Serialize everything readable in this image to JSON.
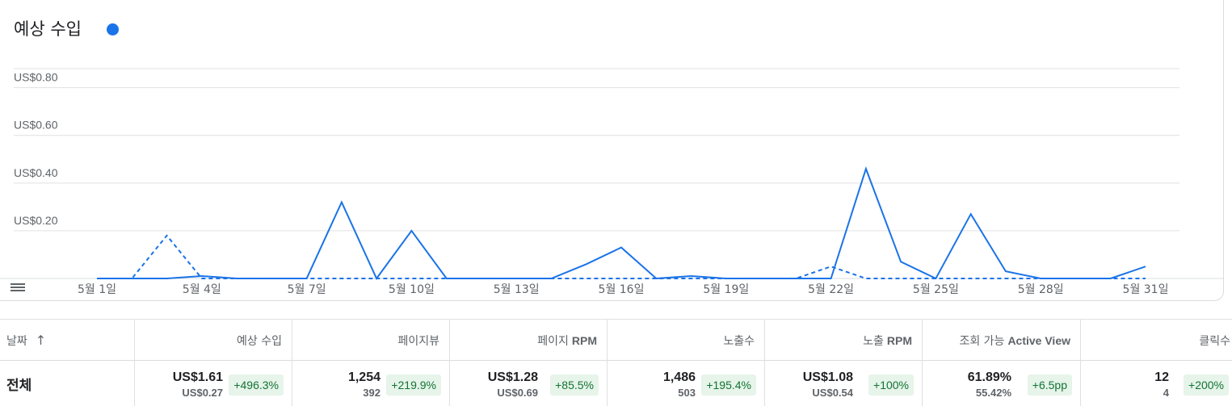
{
  "chart": {
    "title": "예상 수입",
    "series_color": "#1a73e8",
    "legend_icon": "menu-lines-icon"
  },
  "chart_data": {
    "type": "line",
    "x": [
      "5월 1일",
      "5월 2일",
      "5월 3일",
      "5월 4일",
      "5월 5일",
      "5월 6일",
      "5월 7일",
      "5월 8일",
      "5월 9일",
      "5월 10일",
      "5월 11일",
      "5월 12일",
      "5월 13일",
      "5월 14일",
      "5월 15일",
      "5월 16일",
      "5월 17일",
      "5월 18일",
      "5월 19일",
      "5월 20일",
      "5월 21일",
      "5월 22일",
      "5월 23일",
      "5월 24일",
      "5월 25일",
      "5월 26일",
      "5월 27일",
      "5월 28일",
      "5월 29일",
      "5월 30일",
      "5월 31일"
    ],
    "xticks": [
      "5월 1일",
      "5월 4일",
      "5월 7일",
      "5월 10일",
      "5월 13일",
      "5월 16일",
      "5월 19일",
      "5월 22일",
      "5월 25일",
      "5월 28일",
      "5월 31일"
    ],
    "yticks": [
      "US$0.20",
      "US$0.40",
      "US$0.60",
      "US$0.80"
    ],
    "ytick_values": [
      0.2,
      0.4,
      0.6,
      0.8
    ],
    "ylim": [
      0,
      0.88
    ],
    "series": [
      {
        "style": "solid",
        "values": [
          0,
          0,
          0,
          0.01,
          0,
          0,
          0,
          0.32,
          0,
          0.2,
          0,
          0,
          0,
          0,
          0.06,
          0.13,
          0,
          0.01,
          0,
          0,
          0,
          0,
          0.46,
          0.07,
          0,
          0.27,
          0.03,
          0,
          0,
          0,
          0.05
        ]
      },
      {
        "style": "dashed",
        "values": [
          0,
          0,
          0.18,
          0,
          0,
          0,
          0,
          0,
          0,
          0,
          0,
          0,
          0,
          0,
          0,
          0,
          0,
          0,
          0,
          0,
          0,
          0.05,
          0,
          0,
          0,
          0,
          0,
          0,
          0,
          0,
          0
        ]
      }
    ],
    "grid": true
  },
  "table": {
    "sort_icon": "arrow-up-icon",
    "headers": [
      {
        "text": "날짜",
        "bold": ""
      },
      {
        "text": "예상 수입",
        "bold": ""
      },
      {
        "text": "페이지뷰",
        "bold": ""
      },
      {
        "text": "페이지",
        "bold": "RPM"
      },
      {
        "text": "노출수",
        "bold": ""
      },
      {
        "text": "노출",
        "bold": "RPM"
      },
      {
        "text": "조회 가능",
        "bold": "Active View"
      },
      {
        "text": "클릭수",
        "bold": ""
      }
    ],
    "total_label": "전체",
    "cells": [
      {
        "main": "US$1.61",
        "sub": "US$0.27",
        "change": "+496.3%"
      },
      {
        "main": "1,254",
        "sub": "392",
        "change": "+219.9%"
      },
      {
        "main": "US$1.28",
        "sub": "US$0.69",
        "change": "+85.5%"
      },
      {
        "main": "1,486",
        "sub": "503",
        "change": "+195.4%"
      },
      {
        "main": "US$1.08",
        "sub": "US$0.54",
        "change": "+100%"
      },
      {
        "main": "61.89%",
        "sub": "55.42%",
        "change": "+6.5pp"
      },
      {
        "main": "12",
        "sub": "4",
        "change": "+200%"
      }
    ]
  }
}
